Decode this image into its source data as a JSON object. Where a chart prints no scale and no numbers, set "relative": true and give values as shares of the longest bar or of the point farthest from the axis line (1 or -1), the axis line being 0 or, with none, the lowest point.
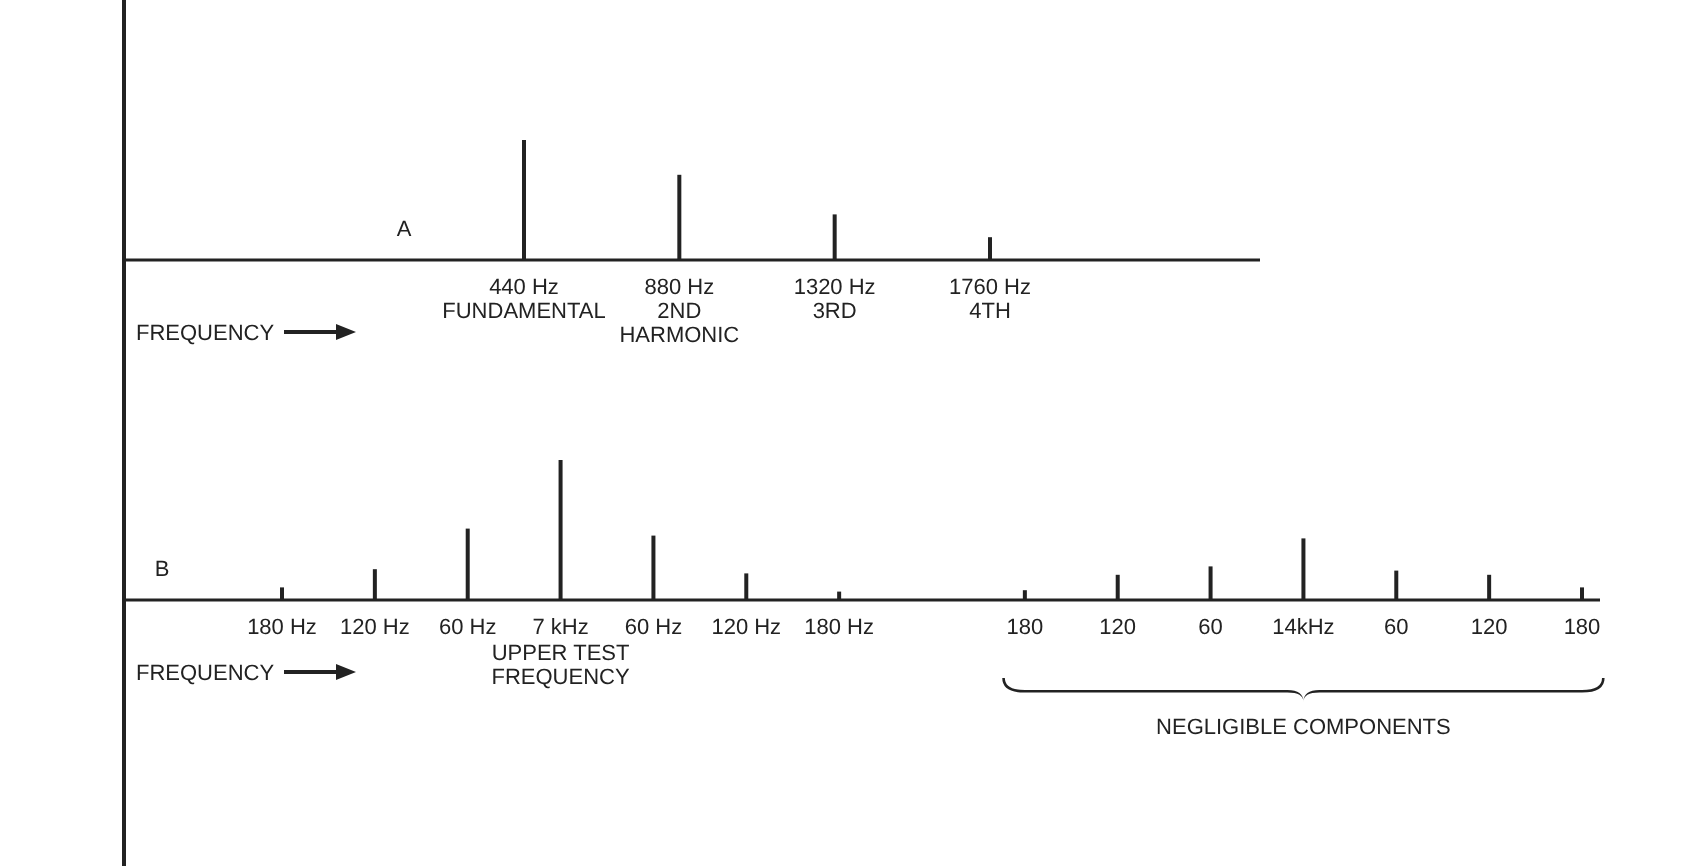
{
  "chart_data": [
    {
      "type": "bar",
      "relative": true,
      "categories": [
        "440 Hz\nFUNDAMENTAL",
        "880 Hz\n2ND\nHARMONIC",
        "1320 Hz\n3RD",
        "1760 Hz\n4TH"
      ],
      "values": [
        1,
        0.71,
        0.38,
        0.19
      ],
      "color": "#222222",
      "annotations": [
        "A",
        "FREQUENCY"
      ]
    },
    {
      "type": "bar",
      "relative": true,
      "categories": [
        "180 Hz",
        "120 Hz",
        "60 Hz",
        "7 kHz",
        "60 Hz",
        "120 Hz",
        "180 Hz",
        null,
        "180",
        "120",
        "60",
        "14kHz",
        "60",
        "120",
        "180"
      ],
      "values": [
        0.09,
        0.22,
        0.51,
        1,
        0.46,
        0.19,
        0.06,
        null,
        0.07,
        0.18,
        0.24,
        0.44,
        0.21,
        0.18,
        0.09
      ],
      "color": "#222222",
      "annotations": [
        "B",
        "FREQUENCY",
        "UPPER TEST FREQUENCY",
        "NEGLIGIBLE COMPONENTS"
      ]
    }
  ]
}
